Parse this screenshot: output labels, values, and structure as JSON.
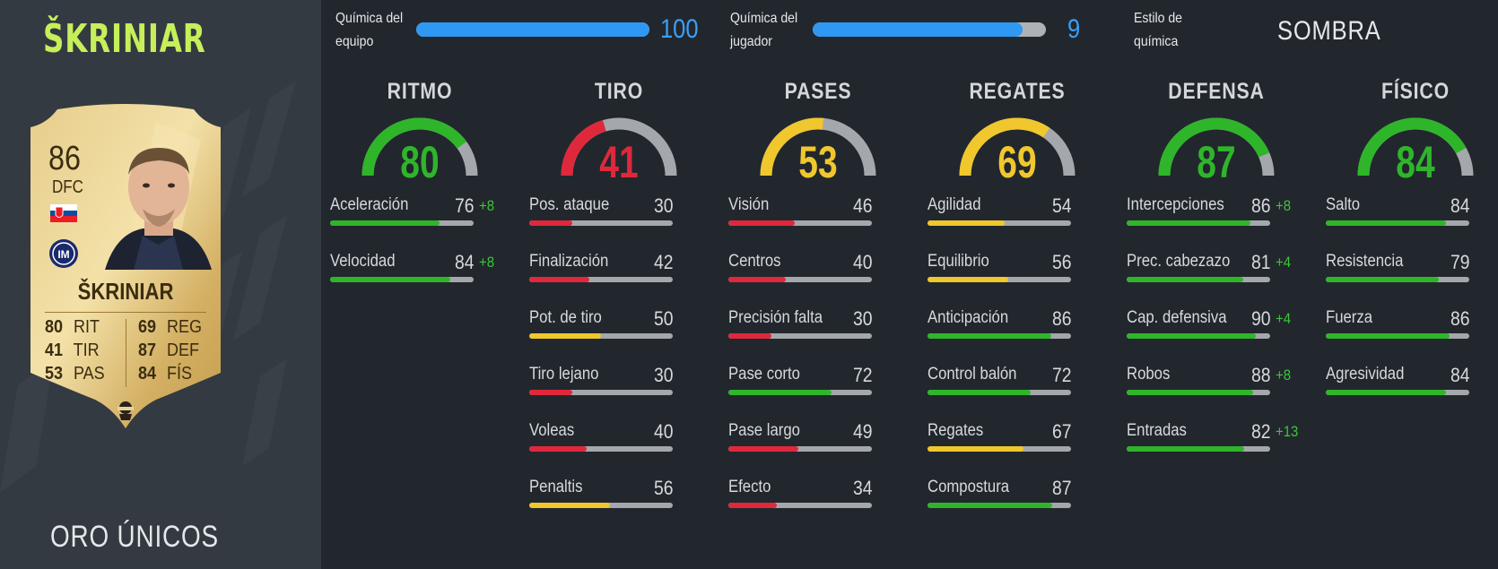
{
  "player": {
    "name": "ŠKRINIAR",
    "card_version": "ORO ÚNICOS"
  },
  "card": {
    "rating": "86",
    "position": "DFC",
    "name": "ŠKRINIAR",
    "nation_flag_icon": "slovakia-flag-icon",
    "club_icon": "inter-crest-icon",
    "style_icon": "shadow-chem-style-icon",
    "stats": [
      {
        "value": "80",
        "label": "RIT"
      },
      {
        "value": "41",
        "label": "TIR"
      },
      {
        "value": "53",
        "label": "PAS"
      },
      {
        "value": "69",
        "label": "REG"
      },
      {
        "value": "87",
        "label": "DEF"
      },
      {
        "value": "84",
        "label": "FÍS"
      }
    ]
  },
  "chemistry": {
    "team": {
      "label": "Química del equipo",
      "value": "100",
      "fraction": 1.0
    },
    "player": {
      "label": "Química del jugador",
      "value": "9",
      "fraction": 0.9
    },
    "style": {
      "label": "Estilo de química",
      "value": "SOMBRA"
    }
  },
  "colors": {
    "high": "#2fb52a",
    "mid": "#f0c72c",
    "low": "#e0283c",
    "name_accent": "#c6ef5a",
    "chem_blue": "#2f98f2"
  },
  "categories": [
    {
      "title": "RITMO",
      "value": "80",
      "stats": [
        {
          "label": "Aceleración",
          "value": "76",
          "bonus": "+8"
        },
        {
          "label": "Velocidad",
          "value": "84",
          "bonus": "+8"
        }
      ]
    },
    {
      "title": "TIRO",
      "value": "41",
      "stats": [
        {
          "label": "Pos. ataque",
          "value": "30",
          "bonus": ""
        },
        {
          "label": "Finalización",
          "value": "42",
          "bonus": ""
        },
        {
          "label": "Pot. de tiro",
          "value": "50",
          "bonus": ""
        },
        {
          "label": "Tiro lejano",
          "value": "30",
          "bonus": ""
        },
        {
          "label": "Voleas",
          "value": "40",
          "bonus": ""
        },
        {
          "label": "Penaltis",
          "value": "56",
          "bonus": ""
        }
      ]
    },
    {
      "title": "PASES",
      "value": "53",
      "stats": [
        {
          "label": "Visión",
          "value": "46",
          "bonus": ""
        },
        {
          "label": "Centros",
          "value": "40",
          "bonus": ""
        },
        {
          "label": "Precisión falta",
          "value": "30",
          "bonus": ""
        },
        {
          "label": "Pase corto",
          "value": "72",
          "bonus": ""
        },
        {
          "label": "Pase largo",
          "value": "49",
          "bonus": ""
        },
        {
          "label": "Efecto",
          "value": "34",
          "bonus": ""
        }
      ]
    },
    {
      "title": "REGATES",
      "value": "69",
      "stats": [
        {
          "label": "Agilidad",
          "value": "54",
          "bonus": ""
        },
        {
          "label": "Equilibrio",
          "value": "56",
          "bonus": ""
        },
        {
          "label": "Anticipación",
          "value": "86",
          "bonus": ""
        },
        {
          "label": "Control balón",
          "value": "72",
          "bonus": ""
        },
        {
          "label": "Regates",
          "value": "67",
          "bonus": ""
        },
        {
          "label": "Compostura",
          "value": "87",
          "bonus": ""
        }
      ]
    },
    {
      "title": "DEFENSA",
      "value": "87",
      "stats": [
        {
          "label": "Intercepciones",
          "value": "86",
          "bonus": "+8"
        },
        {
          "label": "Prec. cabezazo",
          "value": "81",
          "bonus": "+4"
        },
        {
          "label": "Cap. defensiva",
          "value": "90",
          "bonus": "+4"
        },
        {
          "label": "Robos",
          "value": "88",
          "bonus": "+8"
        },
        {
          "label": "Entradas",
          "value": "82",
          "bonus": "+13"
        }
      ]
    },
    {
      "title": "FÍSICO",
      "value": "84",
      "stats": [
        {
          "label": "Salto",
          "value": "84",
          "bonus": ""
        },
        {
          "label": "Resistencia",
          "value": "79",
          "bonus": ""
        },
        {
          "label": "Fuerza",
          "value": "86",
          "bonus": ""
        },
        {
          "label": "Agresividad",
          "value": "84",
          "bonus": ""
        }
      ]
    }
  ]
}
